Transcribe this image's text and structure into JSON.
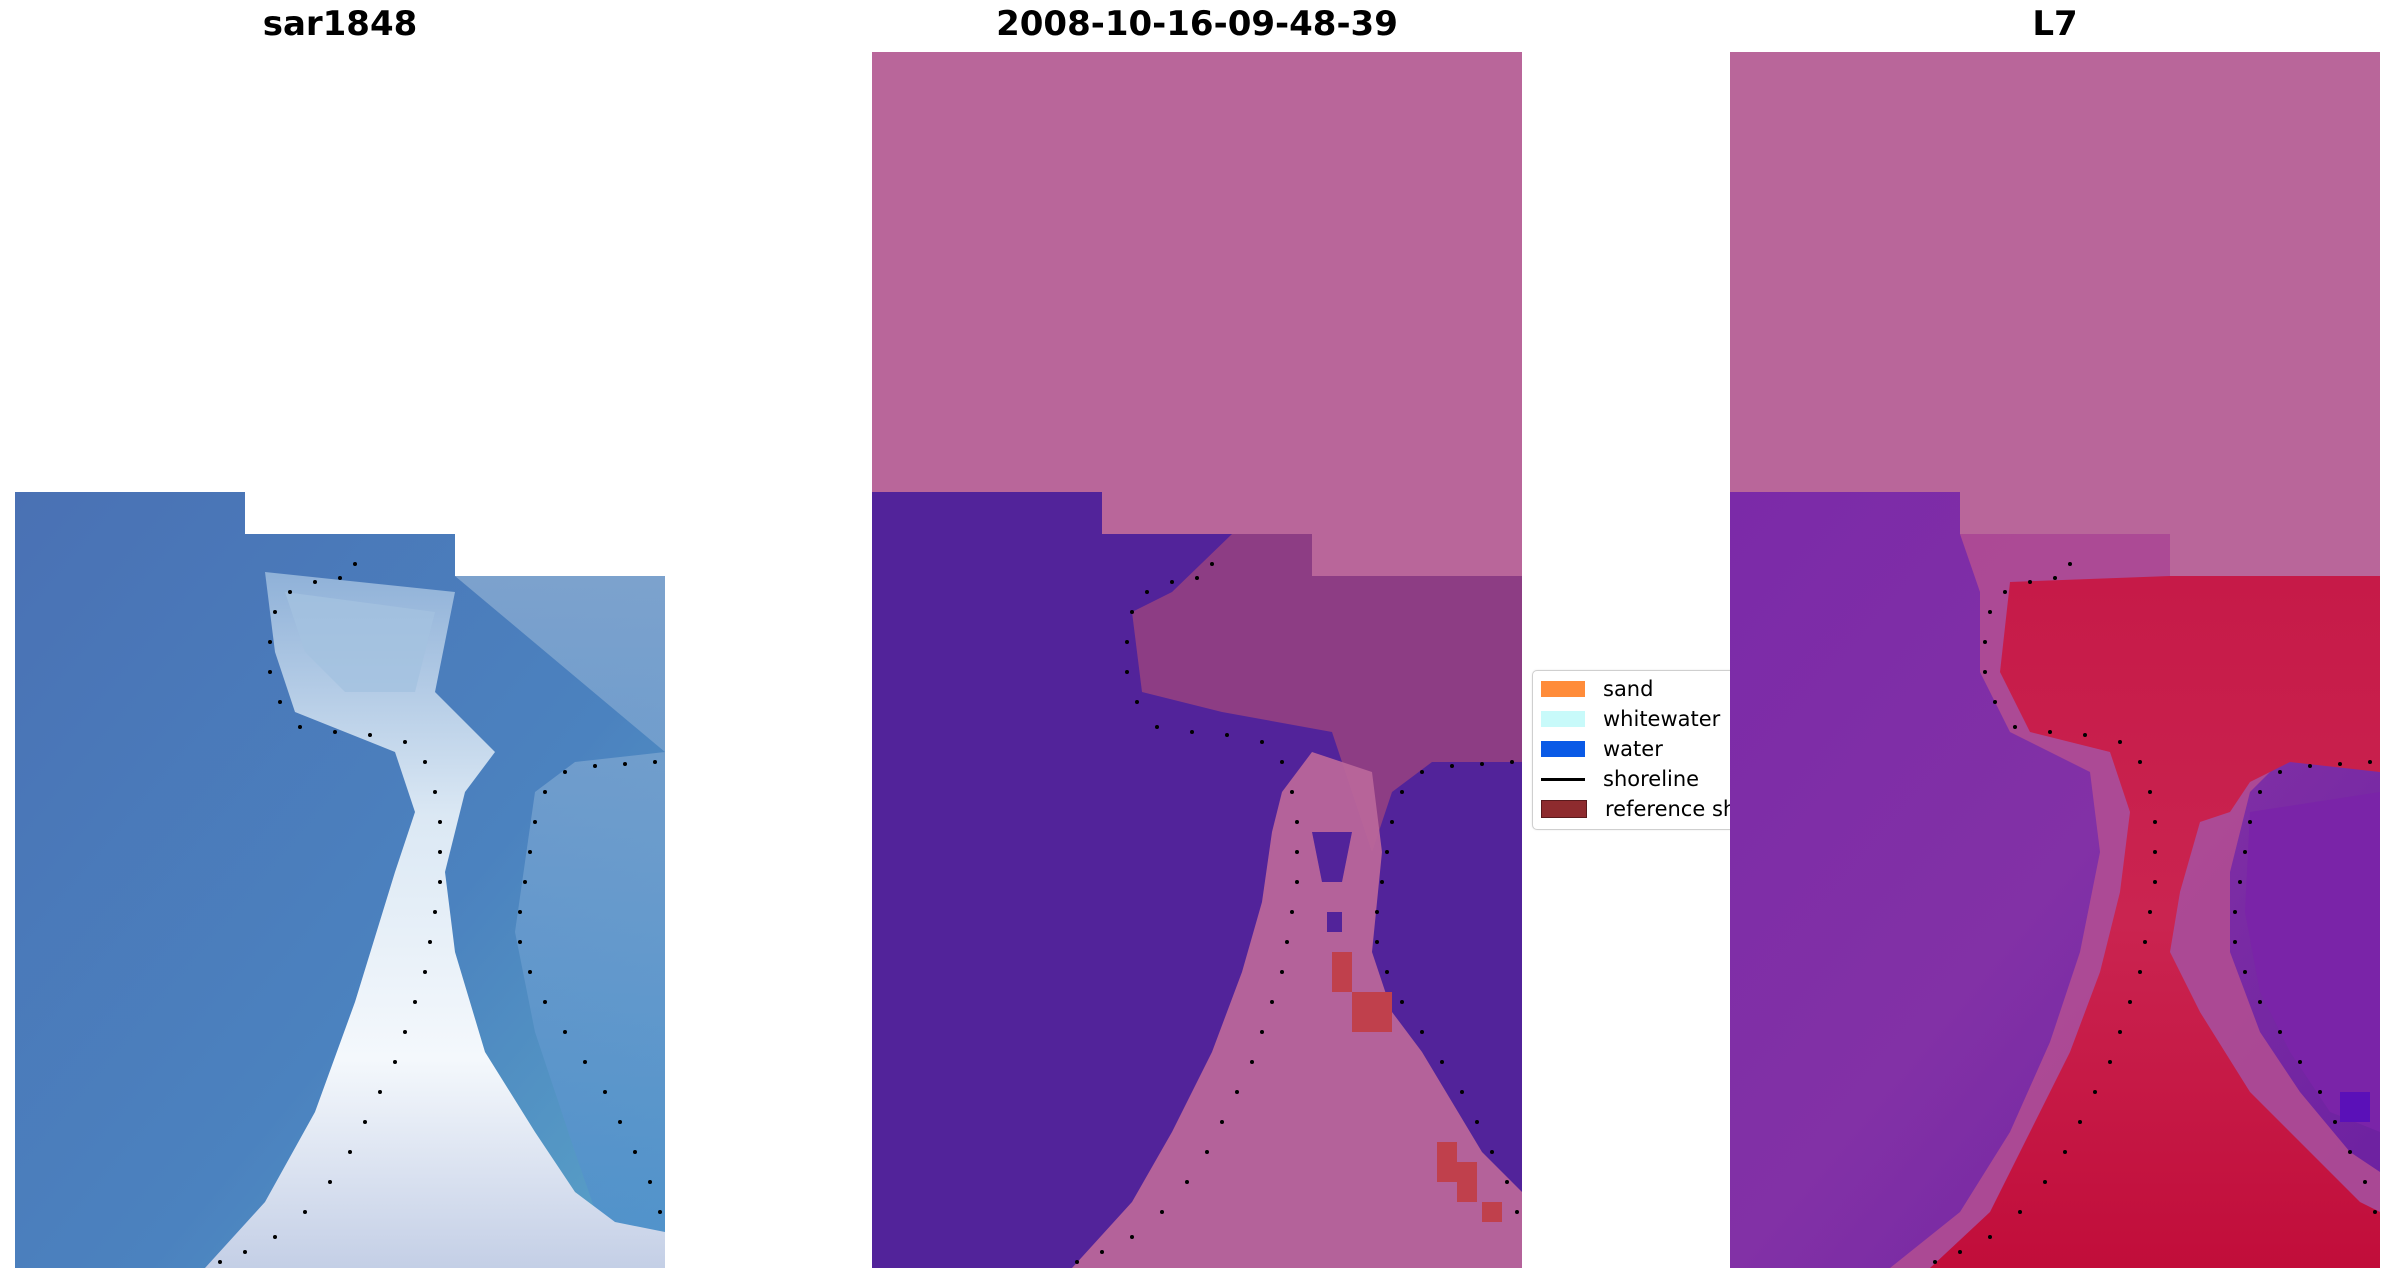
{
  "panels": [
    {
      "title": "sar1848"
    },
    {
      "title": "2008-10-16-09-48-39"
    },
    {
      "title": "L7"
    }
  ],
  "legend": {
    "items": [
      {
        "label": "sand",
        "color": "#ff8c3a"
      },
      {
        "label": "whitewater",
        "color": "#c8fafa"
      },
      {
        "label": "water",
        "color": "#0a5ae6"
      },
      {
        "label": "shoreline",
        "color": "#000000"
      },
      {
        "label": "reference sh",
        "color": "#8e2b2e"
      }
    ]
  },
  "colors": {
    "nodata_pink": "#b9669a",
    "water_purple": "#52239a",
    "rgb_water_blue": "#4a78b8",
    "rgb_sand_white": "#f2f6fb",
    "L7_sand_red": "#c5153f",
    "L7_water_violet": "#7a2aa6"
  }
}
